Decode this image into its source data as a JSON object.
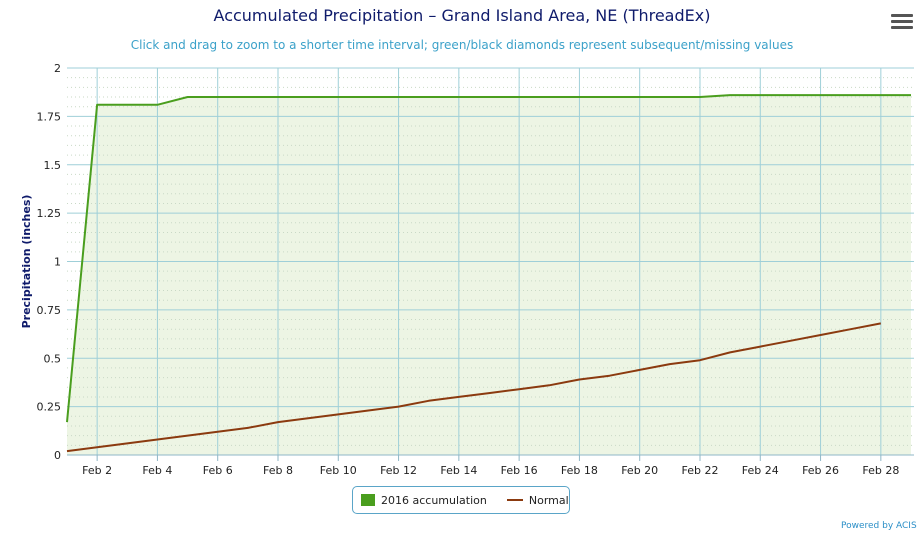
{
  "chart_data": {
    "type": "line",
    "title": "Accumulated Precipitation – Grand Island Area, NE (ThreadEx)",
    "subtitle": "Click and drag to zoom to a shorter time interval; green/black diamonds represent subsequent/missing values",
    "ylabel": "Precipitation (inches)",
    "xlabel": "",
    "ylim": [
      0,
      2
    ],
    "xlim": [
      1,
      29
    ],
    "yticks": [
      "0",
      "0.25",
      "0.5",
      "0.75",
      "1",
      "1.25",
      "1.5",
      "1.75",
      "2"
    ],
    "xticks": [
      {
        "day": 2,
        "label": "Feb 2"
      },
      {
        "day": 4,
        "label": "Feb 4"
      },
      {
        "day": 6,
        "label": "Feb 6"
      },
      {
        "day": 8,
        "label": "Feb 8"
      },
      {
        "day": 10,
        "label": "Feb 10"
      },
      {
        "day": 12,
        "label": "Feb 12"
      },
      {
        "day": 14,
        "label": "Feb 14"
      },
      {
        "day": 16,
        "label": "Feb 16"
      },
      {
        "day": 18,
        "label": "Feb 18"
      },
      {
        "day": 20,
        "label": "Feb 20"
      },
      {
        "day": 22,
        "label": "Feb 22"
      },
      {
        "day": 24,
        "label": "Feb 24"
      },
      {
        "day": 26,
        "label": "Feb 26"
      },
      {
        "day": 28,
        "label": "Feb 28"
      }
    ],
    "grid": true,
    "legend_position": "bottom-center",
    "series": [
      {
        "name": "2016 accumulation",
        "color": "#4a9e1e",
        "fill": "#edf5e4",
        "x": [
          1,
          2,
          3,
          4,
          5,
          6,
          7,
          8,
          9,
          10,
          11,
          12,
          13,
          14,
          15,
          16,
          17,
          18,
          19,
          20,
          21,
          22,
          23,
          24,
          25,
          26,
          27,
          28,
          29
        ],
        "y": [
          0.17,
          1.81,
          1.81,
          1.81,
          1.85,
          1.85,
          1.85,
          1.85,
          1.85,
          1.85,
          1.85,
          1.85,
          1.85,
          1.85,
          1.85,
          1.85,
          1.85,
          1.85,
          1.85,
          1.85,
          1.85,
          1.85,
          1.86,
          1.86,
          1.86,
          1.86,
          1.86,
          1.86,
          1.86
        ]
      },
      {
        "name": "Normal",
        "color": "#8b3a0f",
        "x": [
          1,
          2,
          3,
          4,
          5,
          6,
          7,
          8,
          9,
          10,
          11,
          12,
          13,
          14,
          15,
          16,
          17,
          18,
          19,
          20,
          21,
          22,
          23,
          24,
          25,
          26,
          27,
          28
        ],
        "y": [
          0.02,
          0.04,
          0.06,
          0.08,
          0.1,
          0.12,
          0.14,
          0.17,
          0.19,
          0.21,
          0.23,
          0.25,
          0.28,
          0.3,
          0.32,
          0.34,
          0.36,
          0.39,
          0.41,
          0.44,
          0.47,
          0.49,
          0.53,
          0.56,
          0.59,
          0.62,
          0.65,
          0.68
        ]
      }
    ]
  },
  "legend": {
    "items": [
      {
        "label": "2016 accumulation",
        "color": "#4a9e1e"
      },
      {
        "label": "Normal",
        "color": "#8b3a0f"
      }
    ]
  },
  "credit": "Powered by ACIS",
  "menu_icon": "hamburger-menu-icon"
}
